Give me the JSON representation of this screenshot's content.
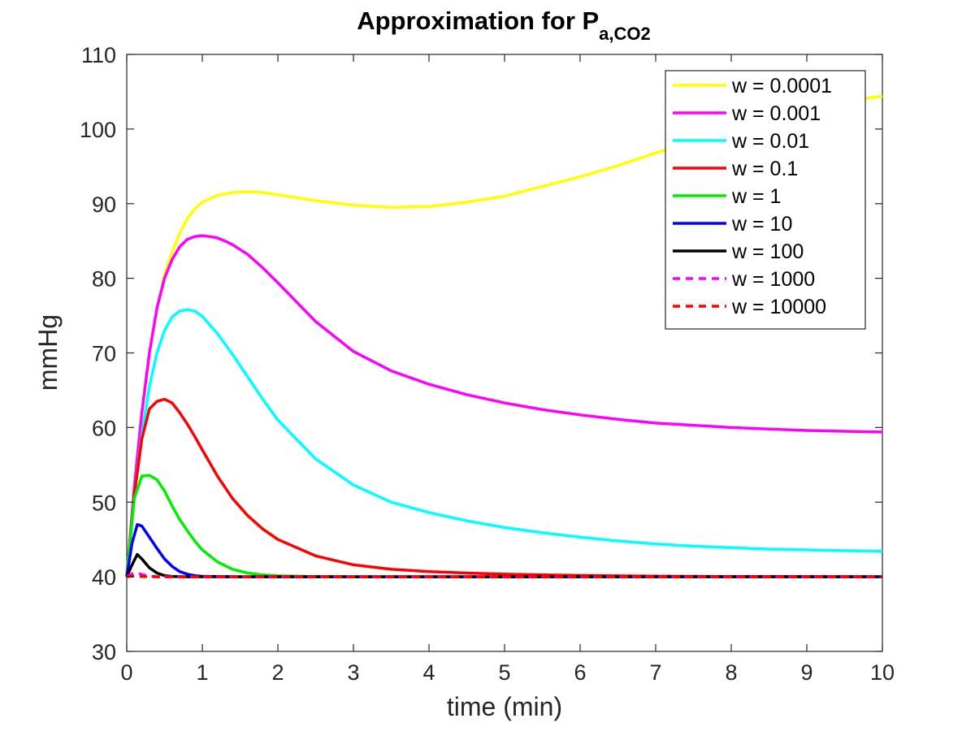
{
  "chart_data": {
    "type": "line",
    "title": "Approximation for P",
    "title_subscript": "a,CO2",
    "xlabel": "time (min)",
    "ylabel": "mmHg",
    "xlim": [
      0,
      10
    ],
    "ylim": [
      30,
      110
    ],
    "xticks": [
      "0",
      "1",
      "2",
      "3",
      "4",
      "5",
      "6",
      "7",
      "8",
      "9",
      "10"
    ],
    "yticks": [
      "30",
      "40",
      "50",
      "60",
      "70",
      "80",
      "90",
      "100",
      "110"
    ],
    "grid": false,
    "legend_position": "top-right",
    "series": [
      {
        "name": "w = 0.0001",
        "color": "#ffff00",
        "dash": "solid",
        "x": [
          0,
          0.1,
          0.2,
          0.3,
          0.4,
          0.5,
          0.6,
          0.7,
          0.8,
          0.9,
          1.0,
          1.2,
          1.4,
          1.6,
          1.8,
          2.0,
          2.5,
          3.0,
          3.5,
          4.0,
          4.5,
          5.0,
          5.5,
          6.0,
          6.5,
          7.0,
          7.5,
          8.0,
          8.5,
          9.0,
          9.5,
          10.0
        ],
        "y": [
          40,
          52,
          62,
          70,
          76,
          80.5,
          83.5,
          86,
          88,
          89.3,
          90.2,
          91.1,
          91.5,
          91.6,
          91.5,
          91.2,
          90.4,
          89.8,
          89.5,
          89.6,
          90.2,
          91.0,
          92.3,
          93.6,
          95.1,
          96.8,
          98.4,
          100.0,
          101.5,
          102.7,
          103.7,
          104.4
        ]
      },
      {
        "name": "w = 0.001",
        "color": "#ff00ff",
        "dash": "solid",
        "x": [
          0,
          0.1,
          0.2,
          0.3,
          0.4,
          0.5,
          0.6,
          0.7,
          0.8,
          0.9,
          1.0,
          1.1,
          1.2,
          1.3,
          1.4,
          1.6,
          1.8,
          2.0,
          2.5,
          3.0,
          3.5,
          4.0,
          4.5,
          5.0,
          5.5,
          6.0,
          6.5,
          7.0,
          7.5,
          8.0,
          8.5,
          9.0,
          9.5,
          10.0
        ],
        "y": [
          40,
          52,
          62,
          70,
          76,
          80,
          82.5,
          84.2,
          85.2,
          85.6,
          85.7,
          85.6,
          85.4,
          85.0,
          84.5,
          83.2,
          81.4,
          79.4,
          74.2,
          70.2,
          67.6,
          65.8,
          64.4,
          63.3,
          62.4,
          61.7,
          61.1,
          60.6,
          60.3,
          60.0,
          59.8,
          59.6,
          59.5,
          59.4
        ]
      },
      {
        "name": "w = 0.01",
        "color": "#00ffff",
        "dash": "solid",
        "x": [
          0,
          0.1,
          0.2,
          0.3,
          0.4,
          0.5,
          0.6,
          0.7,
          0.8,
          0.9,
          1.0,
          1.2,
          1.4,
          1.6,
          1.8,
          2.0,
          2.5,
          3.0,
          3.5,
          4.0,
          4.5,
          5.0,
          5.5,
          6.0,
          6.5,
          7.0,
          7.5,
          8.0,
          8.5,
          9.0,
          9.5,
          10.0
        ],
        "y": [
          40,
          51,
          59,
          65.5,
          70,
          73,
          74.8,
          75.6,
          75.8,
          75.6,
          74.9,
          72.6,
          69.8,
          66.8,
          63.8,
          61.0,
          55.8,
          52.3,
          50.0,
          48.6,
          47.5,
          46.6,
          45.9,
          45.3,
          44.8,
          44.4,
          44.1,
          43.9,
          43.7,
          43.6,
          43.5,
          43.4
        ]
      },
      {
        "name": "w = 0.1",
        "color": "#ff0000",
        "dash": "solid",
        "x": [
          0,
          0.1,
          0.2,
          0.3,
          0.4,
          0.5,
          0.6,
          0.7,
          0.8,
          0.9,
          1.0,
          1.2,
          1.4,
          1.6,
          1.8,
          2.0,
          2.5,
          3.0,
          3.5,
          4.0,
          4.5,
          5.0,
          5.5,
          6.0,
          6.5,
          7.0,
          8.0,
          9.0,
          10.0
        ],
        "y": [
          40,
          51,
          58.5,
          62.5,
          63.5,
          63.8,
          63.3,
          62.0,
          60.5,
          58.8,
          57.0,
          53.5,
          50.5,
          48.2,
          46.4,
          45.0,
          42.8,
          41.6,
          41.0,
          40.7,
          40.5,
          40.35,
          40.25,
          40.18,
          40.12,
          40.08,
          40.04,
          40.02,
          40.0
        ]
      },
      {
        "name": "w = 1",
        "color": "#00ee00",
        "dash": "solid",
        "x": [
          0,
          0.1,
          0.2,
          0.3,
          0.4,
          0.5,
          0.6,
          0.7,
          0.8,
          0.9,
          1.0,
          1.2,
          1.4,
          1.6,
          1.8,
          2.0,
          2.5,
          3.0,
          4.0,
          5.0,
          10.0
        ],
        "y": [
          40,
          50.5,
          53.5,
          53.6,
          53.0,
          51.5,
          49.5,
          47.7,
          46.2,
          44.8,
          43.6,
          42.0,
          41.0,
          40.5,
          40.25,
          40.12,
          40.03,
          40.0,
          40.0,
          40.0,
          40.0
        ]
      },
      {
        "name": "w = 10",
        "color": "#0000ff",
        "dash": "solid",
        "x": [
          0,
          0.07,
          0.14,
          0.2,
          0.3,
          0.4,
          0.5,
          0.6,
          0.7,
          0.8,
          0.9,
          1.0,
          1.5,
          10.0
        ],
        "y": [
          40,
          44.5,
          47.0,
          46.8,
          45.3,
          43.8,
          42.4,
          41.4,
          40.7,
          40.35,
          40.15,
          40.06,
          40.0,
          40.0
        ]
      },
      {
        "name": "w = 100",
        "color": "#000000",
        "dash": "solid",
        "x": [
          0,
          0.07,
          0.14,
          0.2,
          0.3,
          0.4,
          0.5,
          0.6,
          0.8,
          10.0
        ],
        "y": [
          40,
          41.6,
          43.0,
          42.4,
          41.2,
          40.5,
          40.15,
          40.05,
          40.0,
          40.0
        ]
      },
      {
        "name": "w = 1000",
        "color": "#ff00ff",
        "dash": "dashed",
        "x": [
          0,
          0.07,
          0.14,
          0.2,
          0.3,
          0.4,
          10.0
        ],
        "y": [
          40,
          40.4,
          40.5,
          40.3,
          40.1,
          40.0,
          40.0
        ]
      },
      {
        "name": "w = 10000",
        "color": "#ff0000",
        "dash": "dashed",
        "x": [
          0,
          0.07,
          0.14,
          0.2,
          0.3,
          10.0
        ],
        "y": [
          40,
          40.1,
          40.1,
          40.05,
          40.0,
          40.0
        ]
      }
    ]
  }
}
